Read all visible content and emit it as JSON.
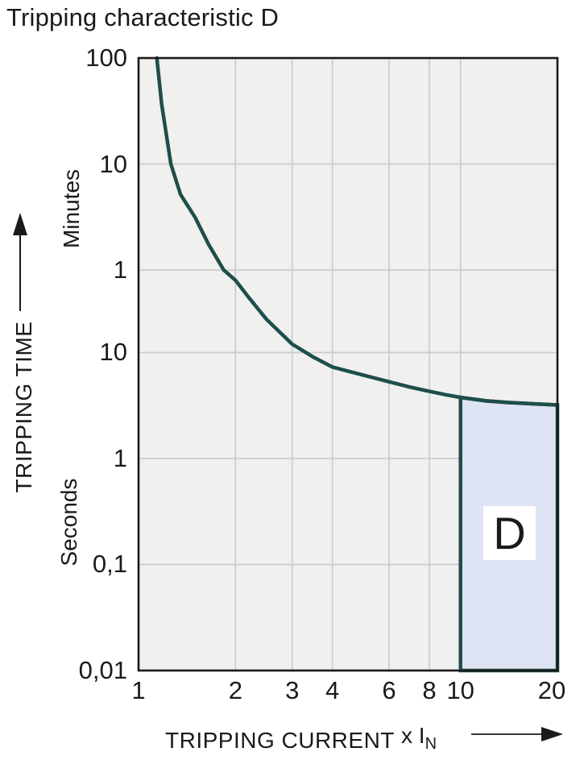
{
  "title": "Tripping characteristic D",
  "colors": {
    "curve": "#1e4e4b",
    "region_fill": "#dee4f3",
    "plot_background": "#f0f0ee",
    "gridline": "#c9cacd",
    "plot_border": "#1a1a1a",
    "text": "#1a1a1a",
    "region_label_background": "#ffffff"
  },
  "chart_data": {
    "type": "line",
    "title": "Tripping characteristic D",
    "grid": true,
    "x_axis": {
      "label": "TRIPPING CURRENT",
      "unit_prefix": "x I",
      "unit_subscript": "N",
      "scale": "log",
      "range": [
        1,
        20
      ],
      "ticks": [
        {
          "label": "1",
          "value": 1
        },
        {
          "label": "2",
          "value": 2
        },
        {
          "label": "3",
          "value": 3
        },
        {
          "label": "4",
          "value": 4
        },
        {
          "label": "6",
          "value": 6
        },
        {
          "label": "8",
          "value": 8
        },
        {
          "label": "10",
          "value": 10
        },
        {
          "label": "20",
          "value": 20
        }
      ]
    },
    "y_axis": {
      "label": "TRIPPING TIME",
      "scale": "log",
      "unit_upper": "Minutes",
      "unit_lower": "Seconds",
      "range_seconds": [
        0.01,
        6000
      ],
      "ticks": [
        {
          "label": "100",
          "seconds": 6000,
          "unit": "minutes"
        },
        {
          "label": "10",
          "seconds": 600,
          "unit": "minutes"
        },
        {
          "label": "1",
          "seconds": 60,
          "unit": "minutes"
        },
        {
          "label": "10",
          "seconds": 10,
          "unit": "seconds"
        },
        {
          "label": "1",
          "seconds": 1,
          "unit": "seconds"
        },
        {
          "label": "0,1",
          "seconds": 0.1,
          "unit": "seconds"
        },
        {
          "label": "0,01",
          "seconds": 0.01,
          "unit": "seconds"
        }
      ]
    },
    "series": [
      {
        "name": "tripping-curve",
        "points_x_in_seconds": [
          [
            1.14,
            6000
          ],
          [
            1.18,
            2200
          ],
          [
            1.26,
            600
          ],
          [
            1.35,
            310
          ],
          [
            1.5,
            187
          ],
          [
            1.65,
            105
          ],
          [
            1.84,
            60
          ],
          [
            2,
            48
          ],
          [
            2.2,
            33
          ],
          [
            2.5,
            20.5
          ],
          [
            3,
            12
          ],
          [
            3.5,
            9
          ],
          [
            4,
            7.3
          ],
          [
            5,
            6.1
          ],
          [
            6,
            5.3
          ],
          [
            7,
            4.7
          ],
          [
            8,
            4.3
          ],
          [
            9,
            4.0
          ],
          [
            10,
            3.77
          ],
          [
            12,
            3.5
          ],
          [
            14,
            3.38
          ],
          [
            17,
            3.28
          ],
          [
            20,
            3.2
          ]
        ]
      }
    ],
    "region": {
      "label": "D",
      "x_range": [
        10,
        20
      ],
      "bottom_seconds": 0.01,
      "top": "curve"
    }
  }
}
